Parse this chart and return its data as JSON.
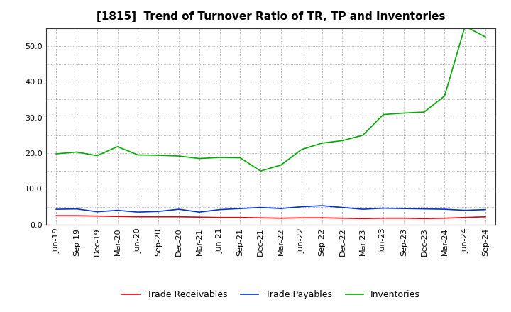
{
  "title": "[1815]  Trend of Turnover Ratio of TR, TP and Inventories",
  "x_labels": [
    "Jun-19",
    "Sep-19",
    "Dec-19",
    "Mar-20",
    "Jun-20",
    "Sep-20",
    "Dec-20",
    "Mar-21",
    "Jun-21",
    "Sep-21",
    "Dec-21",
    "Mar-22",
    "Jun-22",
    "Sep-22",
    "Dec-22",
    "Mar-23",
    "Jun-23",
    "Sep-23",
    "Dec-23",
    "Mar-24",
    "Jun-24",
    "Sep-24"
  ],
  "trade_receivables": [
    2.5,
    2.5,
    2.4,
    2.3,
    2.2,
    2.2,
    2.2,
    2.1,
    2.0,
    2.0,
    1.9,
    1.8,
    1.9,
    1.9,
    1.8,
    1.7,
    1.8,
    1.8,
    1.7,
    1.8,
    2.0,
    2.2
  ],
  "trade_payables": [
    4.3,
    4.4,
    3.6,
    4.0,
    3.5,
    3.7,
    4.3,
    3.5,
    4.2,
    4.5,
    4.8,
    4.5,
    5.0,
    5.3,
    4.8,
    4.3,
    4.6,
    4.5,
    4.4,
    4.3,
    4.0,
    4.2
  ],
  "inventories": [
    19.8,
    20.3,
    19.3,
    21.8,
    19.5,
    19.4,
    19.2,
    18.5,
    18.8,
    18.7,
    15.0,
    16.7,
    21.0,
    22.8,
    23.5,
    25.0,
    30.8,
    31.2,
    31.5,
    36.0,
    55.5,
    52.5
  ],
  "tr_color": "#e8000d",
  "tp_color": "#0033cc",
  "inv_color": "#00aa00",
  "ylim": [
    0,
    55
  ],
  "yticks": [
    0.0,
    10.0,
    20.0,
    30.0,
    40.0,
    50.0
  ],
  "grid_color": "#999999",
  "background_color": "#ffffff",
  "legend_labels": [
    "Trade Receivables",
    "Trade Payables",
    "Inventories"
  ],
  "title_fontsize": 11,
  "tick_fontsize": 8,
  "legend_fontsize": 9
}
